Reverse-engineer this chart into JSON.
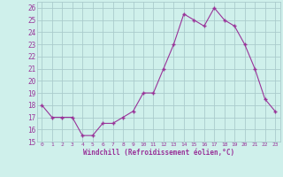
{
  "x": [
    0,
    1,
    2,
    3,
    4,
    5,
    6,
    7,
    8,
    9,
    10,
    11,
    12,
    13,
    14,
    15,
    16,
    17,
    18,
    19,
    20,
    21,
    22,
    23
  ],
  "y": [
    18,
    17,
    17,
    17,
    15.5,
    15.5,
    16.5,
    16.5,
    17,
    17.5,
    19,
    19,
    21,
    23,
    25.5,
    25,
    24.5,
    26,
    25,
    24.5,
    23,
    21,
    18.5,
    17.5
  ],
  "line_color": "#993399",
  "marker_color": "#993399",
  "bg_color": "#cff0eb",
  "grid_color": "#aacccc",
  "xlabel": "Windchill (Refroidissement éolien,°C)",
  "xlabel_color": "#993399",
  "tick_color": "#993399",
  "ylim": [
    15,
    26.5
  ],
  "xlim": [
    -0.5,
    23.5
  ],
  "yticks": [
    15,
    16,
    17,
    18,
    19,
    20,
    21,
    22,
    23,
    24,
    25,
    26
  ],
  "xticks": [
    0,
    1,
    2,
    3,
    4,
    5,
    6,
    7,
    8,
    9,
    10,
    11,
    12,
    13,
    14,
    15,
    16,
    17,
    18,
    19,
    20,
    21,
    22,
    23
  ]
}
